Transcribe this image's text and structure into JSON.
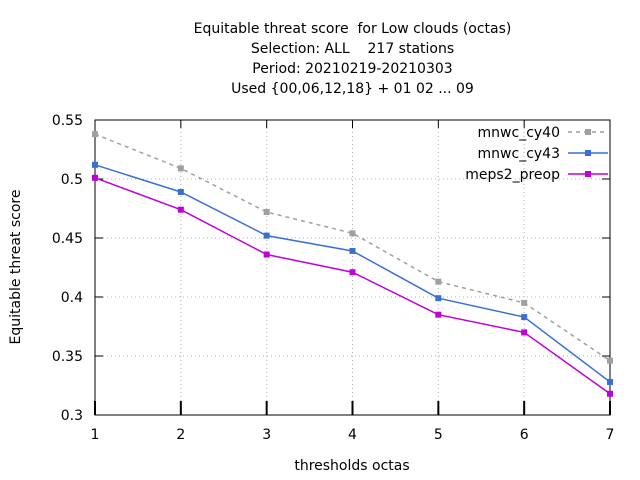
{
  "chart_data": {
    "type": "line",
    "title_lines": [
      "Equitable threat score  for Low clouds (octas)",
      "Selection: ALL    217 stations",
      "Period: 20210219-20210303",
      "Used {00,06,12,18} + 01 02 ... 09"
    ],
    "xlabel": "thresholds octas",
    "ylabel": "Equitable threat score",
    "x": [
      1,
      2,
      3,
      4,
      5,
      6,
      7
    ],
    "xlim": [
      1,
      7
    ],
    "ylim": [
      0.3,
      0.55
    ],
    "yticks": [
      0.3,
      0.35,
      0.4,
      0.45,
      0.5,
      0.55
    ],
    "ytick_labels": [
      "0.3",
      "0.35",
      "0.4",
      "0.45",
      "0.5",
      "0.55"
    ],
    "xtick_labels": [
      "1",
      "2",
      "3",
      "4",
      "5",
      "6",
      "7"
    ],
    "grid": true,
    "legend_position": "top-right",
    "series": [
      {
        "name": "mnwc_cy40",
        "color": "#a0a0a0",
        "dashed": true,
        "values": [
          0.538,
          0.509,
          0.472,
          0.454,
          0.413,
          0.395,
          0.346
        ]
      },
      {
        "name": "mnwc_cy43",
        "color": "#3a6fd6",
        "dashed": false,
        "values": [
          0.512,
          0.489,
          0.452,
          0.439,
          0.399,
          0.383,
          0.328
        ]
      },
      {
        "name": "meps2_preop",
        "color": "#c000d8",
        "dashed": false,
        "values": [
          0.501,
          0.474,
          0.436,
          0.421,
          0.385,
          0.37,
          0.318
        ]
      }
    ]
  }
}
